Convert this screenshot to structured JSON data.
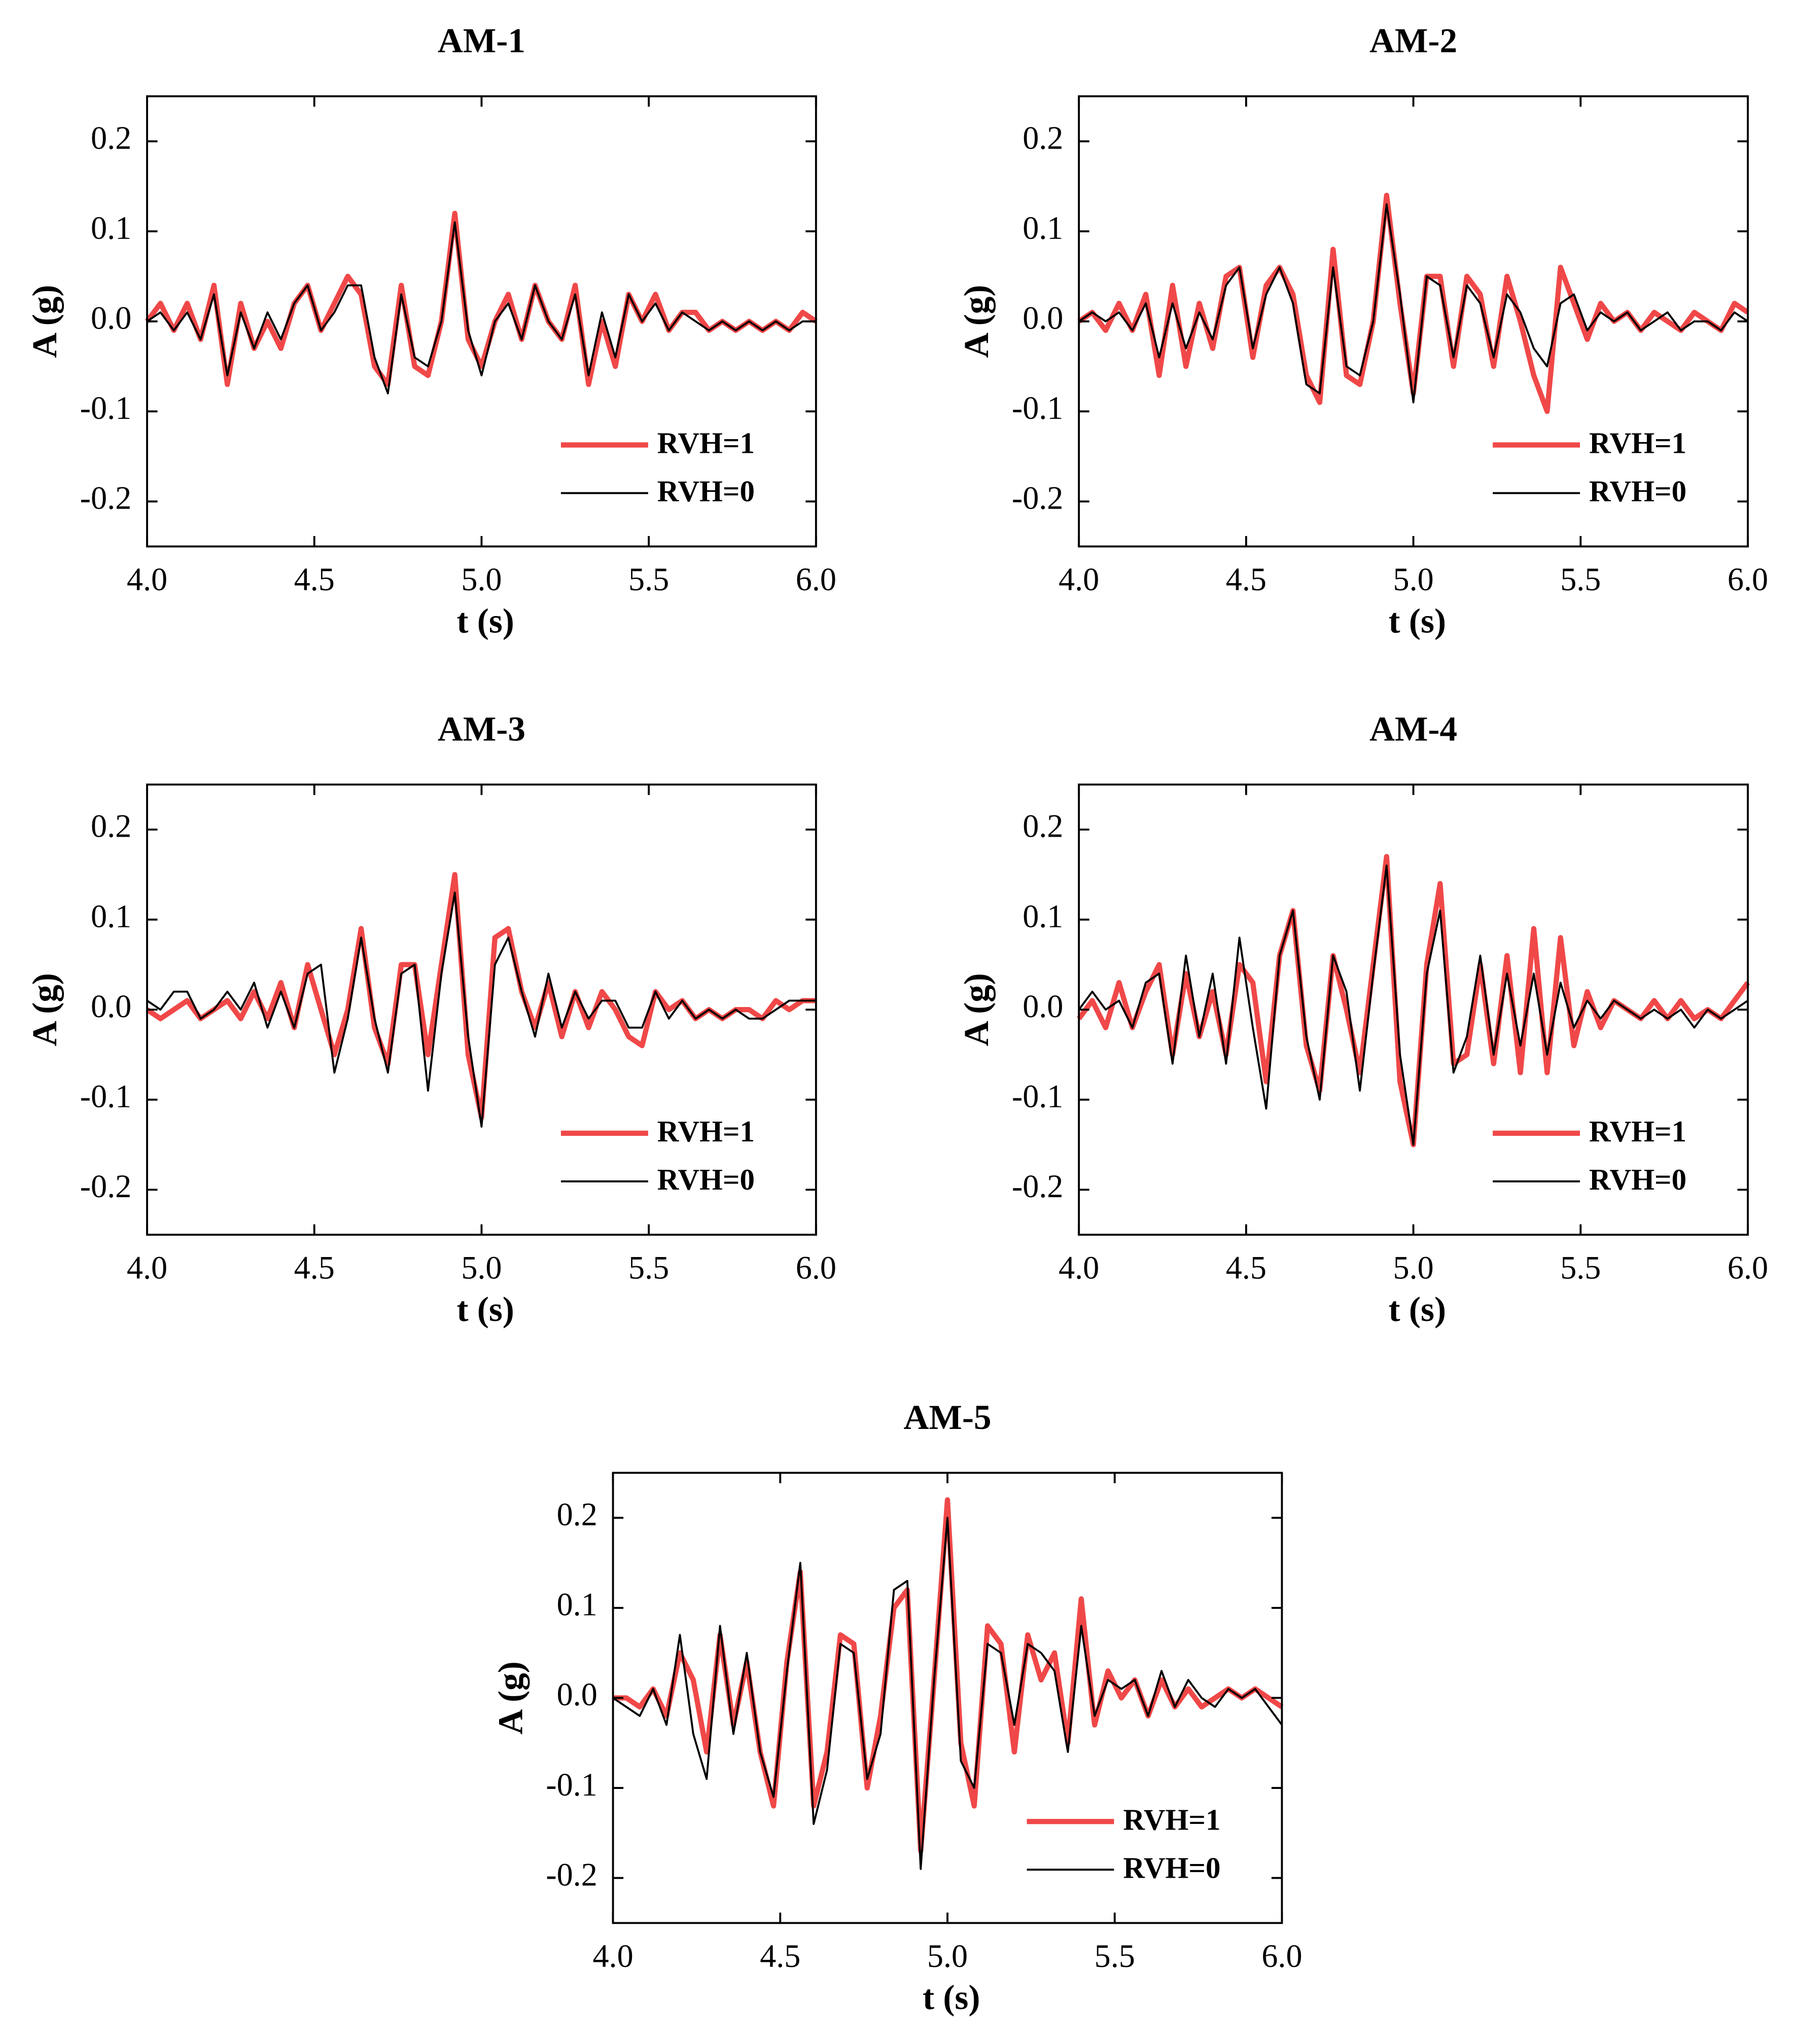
{
  "chart_data": [
    {
      "type": "line",
      "title": "AM-1",
      "xlabel": "t (s)",
      "ylabel": "A (g)",
      "legend": "lower right",
      "xlim": [
        4,
        6
      ],
      "ylim": [
        -0.25,
        0.25
      ],
      "xticks": [
        {
          "value": 4,
          "label": "4.0"
        },
        4.5,
        {
          "value": 5,
          "label": "5.0"
        },
        5.5,
        {
          "value": 6,
          "label": "6.0"
        }
      ],
      "yticks": [
        -0.2,
        -0.1,
        {
          "value": 0,
          "label": "0.0"
        },
        0.1,
        0.2
      ],
      "x": [
        4,
        4.04,
        4.08,
        4.12,
        4.16,
        4.2,
        4.24,
        4.28,
        4.32,
        4.36,
        4.4,
        4.44,
        4.48,
        4.52,
        4.56,
        4.6,
        4.64,
        4.68,
        4.72,
        4.76,
        4.8,
        4.84,
        4.88,
        4.92,
        4.96,
        5,
        5.04,
        5.08,
        5.12,
        5.16,
        5.2,
        5.24,
        5.28,
        5.32,
        5.36,
        5.4,
        5.44,
        5.48,
        5.52,
        5.56,
        5.6,
        5.64,
        5.68,
        5.72,
        5.76,
        5.8,
        5.84,
        5.88,
        5.92,
        5.96,
        6
      ],
      "series": [
        {
          "name": "RVH=1",
          "color": "#f04848",
          "values": [
            0.0,
            0.02,
            -0.01,
            0.02,
            -0.02,
            0.04,
            -0.07,
            0.02,
            -0.03,
            0.0,
            -0.03,
            0.02,
            0.04,
            -0.01,
            0.02,
            0.05,
            0.03,
            -0.05,
            -0.07,
            0.04,
            -0.05,
            -0.06,
            0.0,
            0.12,
            -0.02,
            -0.05,
            0.0,
            0.03,
            -0.02,
            0.04,
            0.0,
            -0.02,
            0.04,
            -0.07,
            0.0,
            -0.05,
            0.03,
            0.0,
            0.03,
            -0.01,
            0.01,
            0.01,
            -0.01,
            0.0,
            -0.01,
            0.0,
            -0.01,
            0.0,
            -0.01,
            0.01,
            0.0
          ]
        },
        {
          "name": "RVH=0",
          "color": "#000000",
          "values": [
            0.0,
            0.01,
            -0.01,
            0.01,
            -0.02,
            0.03,
            -0.06,
            0.01,
            -0.03,
            0.01,
            -0.02,
            0.02,
            0.04,
            -0.01,
            0.01,
            0.04,
            0.04,
            -0.04,
            -0.08,
            0.03,
            -0.04,
            -0.05,
            0.0,
            0.11,
            -0.01,
            -0.06,
            0.0,
            0.02,
            -0.02,
            0.04,
            0.0,
            -0.02,
            0.03,
            -0.06,
            0.01,
            -0.04,
            0.03,
            0.0,
            0.02,
            -0.01,
            0.01,
            0.0,
            -0.01,
            0.0,
            -0.01,
            0.0,
            -0.01,
            0.0,
            -0.01,
            0.0,
            0.0
          ]
        }
      ]
    },
    {
      "type": "line",
      "title": "AM-2",
      "xlabel": "t (s)",
      "ylabel": "A (g)",
      "legend": "lower right",
      "xlim": [
        4,
        6
      ],
      "ylim": [
        -0.25,
        0.25
      ],
      "xticks": [
        {
          "value": 4,
          "label": "4.0"
        },
        4.5,
        {
          "value": 5,
          "label": "5.0"
        },
        5.5,
        {
          "value": 6,
          "label": "6.0"
        }
      ],
      "yticks": [
        -0.2,
        -0.1,
        {
          "value": 0,
          "label": "0.0"
        },
        0.1,
        0.2
      ],
      "x": [
        4,
        4.04,
        4.08,
        4.12,
        4.16,
        4.2,
        4.24,
        4.28,
        4.32,
        4.36,
        4.4,
        4.44,
        4.48,
        4.52,
        4.56,
        4.6,
        4.64,
        4.68,
        4.72,
        4.76,
        4.8,
        4.84,
        4.88,
        4.92,
        4.96,
        5,
        5.04,
        5.08,
        5.12,
        5.16,
        5.2,
        5.24,
        5.28,
        5.32,
        5.36,
        5.4,
        5.44,
        5.48,
        5.52,
        5.56,
        5.6,
        5.64,
        5.68,
        5.72,
        5.76,
        5.8,
        5.84,
        5.88,
        5.92,
        5.96,
        6
      ],
      "series": [
        {
          "name": "RVH=1",
          "color": "#f04848",
          "values": [
            0.0,
            0.01,
            -0.01,
            0.02,
            -0.01,
            0.03,
            -0.06,
            0.04,
            -0.05,
            0.02,
            -0.03,
            0.05,
            0.06,
            -0.04,
            0.04,
            0.06,
            0.03,
            -0.06,
            -0.09,
            0.08,
            -0.06,
            -0.07,
            0.0,
            0.14,
            0.02,
            -0.08,
            0.05,
            0.05,
            -0.05,
            0.05,
            0.03,
            -0.05,
            0.05,
            0.0,
            -0.06,
            -0.1,
            0.06,
            0.02,
            -0.02,
            0.02,
            0.0,
            0.01,
            -0.01,
            0.01,
            0.0,
            -0.01,
            0.01,
            0.0,
            -0.01,
            0.02,
            0.01
          ]
        },
        {
          "name": "RVH=0",
          "color": "#000000",
          "values": [
            0.0,
            0.01,
            0.0,
            0.01,
            -0.01,
            0.02,
            -0.04,
            0.02,
            -0.03,
            0.01,
            -0.02,
            0.04,
            0.06,
            -0.03,
            0.03,
            0.06,
            0.02,
            -0.07,
            -0.08,
            0.06,
            -0.05,
            -0.06,
            0.0,
            0.13,
            0.03,
            -0.09,
            0.05,
            0.04,
            -0.04,
            0.04,
            0.02,
            -0.04,
            0.03,
            0.01,
            -0.03,
            -0.05,
            0.02,
            0.03,
            -0.01,
            0.01,
            0.0,
            0.01,
            -0.01,
            0.0,
            0.01,
            -0.01,
            0.0,
            0.0,
            -0.01,
            0.01,
            0.0
          ]
        }
      ]
    },
    {
      "type": "line",
      "title": "AM-3",
      "xlabel": "t (s)",
      "ylabel": "A (g)",
      "legend": "lower right",
      "xlim": [
        4,
        6
      ],
      "ylim": [
        -0.25,
        0.25
      ],
      "xticks": [
        {
          "value": 4,
          "label": "4.0"
        },
        4.5,
        {
          "value": 5,
          "label": "5.0"
        },
        5.5,
        {
          "value": 6,
          "label": "6.0"
        }
      ],
      "yticks": [
        -0.2,
        -0.1,
        {
          "value": 0,
          "label": "0.0"
        },
        0.1,
        0.2
      ],
      "x": [
        4,
        4.04,
        4.08,
        4.12,
        4.16,
        4.2,
        4.24,
        4.28,
        4.32,
        4.36,
        4.4,
        4.44,
        4.48,
        4.52,
        4.56,
        4.6,
        4.64,
        4.68,
        4.72,
        4.76,
        4.8,
        4.84,
        4.88,
        4.92,
        4.96,
        5,
        5.04,
        5.08,
        5.12,
        5.16,
        5.2,
        5.24,
        5.28,
        5.32,
        5.36,
        5.4,
        5.44,
        5.48,
        5.52,
        5.56,
        5.6,
        5.64,
        5.68,
        5.72,
        5.76,
        5.8,
        5.84,
        5.88,
        5.92,
        5.96,
        6
      ],
      "series": [
        {
          "name": "RVH=1",
          "color": "#f04848",
          "values": [
            0.0,
            -0.01,
            0.0,
            0.01,
            -0.01,
            0.0,
            0.01,
            -0.01,
            0.02,
            -0.01,
            0.03,
            -0.02,
            0.05,
            0.0,
            -0.05,
            0.0,
            0.09,
            -0.02,
            -0.06,
            0.05,
            0.05,
            -0.05,
            0.05,
            0.15,
            -0.05,
            -0.12,
            0.08,
            0.09,
            0.02,
            -0.02,
            0.03,
            -0.03,
            0.02,
            -0.02,
            0.02,
            0.0,
            -0.03,
            -0.04,
            0.02,
            0.0,
            0.01,
            -0.01,
            0.0,
            -0.01,
            0.0,
            0.0,
            -0.01,
            0.01,
            0.0,
            0.01,
            0.01
          ]
        },
        {
          "name": "RVH=0",
          "color": "#000000",
          "values": [
            0.01,
            0.0,
            0.02,
            0.02,
            -0.01,
            0.0,
            0.02,
            0.0,
            0.03,
            -0.02,
            0.02,
            -0.02,
            0.04,
            0.05,
            -0.07,
            -0.01,
            0.08,
            -0.01,
            -0.07,
            0.04,
            0.05,
            -0.09,
            0.04,
            0.13,
            -0.03,
            -0.13,
            0.05,
            0.08,
            0.02,
            -0.03,
            0.04,
            -0.02,
            0.02,
            -0.01,
            0.01,
            0.01,
            -0.02,
            -0.02,
            0.02,
            -0.01,
            0.01,
            -0.01,
            0.0,
            -0.01,
            0.0,
            -0.01,
            -0.01,
            0.0,
            0.01,
            0.01,
            0.01
          ]
        }
      ]
    },
    {
      "type": "line",
      "title": "AM-4",
      "xlabel": "t (s)",
      "ylabel": "A (g)",
      "legend": "lower right",
      "xlim": [
        4,
        6
      ],
      "ylim": [
        -0.25,
        0.25
      ],
      "xticks": [
        {
          "value": 4,
          "label": "4.0"
        },
        4.5,
        {
          "value": 5,
          "label": "5.0"
        },
        5.5,
        {
          "value": 6,
          "label": "6.0"
        }
      ],
      "yticks": [
        -0.2,
        -0.1,
        {
          "value": 0,
          "label": "0.0"
        },
        0.1,
        0.2
      ],
      "x": [
        4,
        4.04,
        4.08,
        4.12,
        4.16,
        4.2,
        4.24,
        4.28,
        4.32,
        4.36,
        4.4,
        4.44,
        4.48,
        4.52,
        4.56,
        4.6,
        4.64,
        4.68,
        4.72,
        4.76,
        4.8,
        4.84,
        4.88,
        4.92,
        4.96,
        5,
        5.04,
        5.08,
        5.12,
        5.16,
        5.2,
        5.24,
        5.28,
        5.32,
        5.36,
        5.4,
        5.44,
        5.48,
        5.52,
        5.56,
        5.6,
        5.64,
        5.68,
        5.72,
        5.76,
        5.8,
        5.84,
        5.88,
        5.92,
        5.96,
        6
      ],
      "series": [
        {
          "name": "RVH=1",
          "color": "#f04848",
          "values": [
            -0.01,
            0.01,
            -0.02,
            0.03,
            -0.02,
            0.02,
            0.05,
            -0.05,
            0.04,
            -0.03,
            0.02,
            -0.05,
            0.05,
            0.03,
            -0.08,
            0.06,
            0.11,
            -0.04,
            -0.09,
            0.06,
            0.0,
            -0.07,
            0.05,
            0.17,
            -0.08,
            -0.15,
            0.05,
            0.14,
            -0.06,
            -0.05,
            0.05,
            -0.06,
            0.06,
            -0.07,
            0.09,
            -0.07,
            0.08,
            -0.04,
            0.02,
            -0.02,
            0.01,
            0.0,
            -0.01,
            0.01,
            -0.01,
            0.01,
            -0.01,
            0.0,
            -0.01,
            0.01,
            0.03
          ]
        },
        {
          "name": "RVH=0",
          "color": "#000000",
          "values": [
            0.0,
            0.02,
            0.0,
            0.01,
            -0.02,
            0.03,
            0.04,
            -0.06,
            0.06,
            -0.03,
            0.04,
            -0.06,
            0.08,
            -0.02,
            -0.11,
            0.06,
            0.11,
            -0.03,
            -0.1,
            0.06,
            0.02,
            -0.09,
            0.04,
            0.16,
            -0.05,
            -0.15,
            0.04,
            0.11,
            -0.07,
            -0.03,
            0.06,
            -0.05,
            0.04,
            -0.04,
            0.04,
            -0.05,
            0.03,
            -0.02,
            0.01,
            -0.01,
            0.01,
            0.0,
            -0.01,
            0.0,
            -0.01,
            0.0,
            -0.02,
            0.0,
            -0.01,
            0.0,
            0.01
          ]
        }
      ]
    },
    {
      "type": "line",
      "title": "AM-5",
      "xlabel": "t (s)",
      "ylabel": "A (g)",
      "legend": "lower right",
      "xlim": [
        4,
        6
      ],
      "ylim": [
        -0.25,
        0.25
      ],
      "xticks": [
        {
          "value": 4,
          "label": "4.0"
        },
        4.5,
        {
          "value": 5,
          "label": "5.0"
        },
        5.5,
        {
          "value": 6,
          "label": "6.0"
        }
      ],
      "yticks": [
        -0.2,
        -0.1,
        {
          "value": 0,
          "label": "0.0"
        },
        0.1,
        0.2
      ],
      "x": [
        4,
        4.04,
        4.08,
        4.12,
        4.16,
        4.2,
        4.24,
        4.28,
        4.32,
        4.36,
        4.4,
        4.44,
        4.48,
        4.52,
        4.56,
        4.6,
        4.64,
        4.68,
        4.72,
        4.76,
        4.8,
        4.84,
        4.88,
        4.92,
        4.96,
        5,
        5.04,
        5.08,
        5.12,
        5.16,
        5.2,
        5.24,
        5.28,
        5.32,
        5.36,
        5.4,
        5.44,
        5.48,
        5.52,
        5.56,
        5.6,
        5.64,
        5.68,
        5.72,
        5.76,
        5.8,
        5.84,
        5.88,
        5.92,
        5.96,
        6
      ],
      "series": [
        {
          "name": "RVH=1",
          "color": "#f04848",
          "values": [
            0.0,
            0.0,
            -0.01,
            0.01,
            -0.02,
            0.05,
            0.02,
            -0.06,
            0.07,
            -0.03,
            0.04,
            -0.06,
            -0.12,
            0.04,
            0.14,
            -0.12,
            -0.06,
            0.07,
            0.06,
            -0.1,
            -0.02,
            0.1,
            0.12,
            -0.17,
            0.02,
            0.22,
            -0.05,
            -0.12,
            0.08,
            0.06,
            -0.06,
            0.07,
            0.02,
            0.05,
            -0.05,
            0.11,
            -0.03,
            0.03,
            0.0,
            0.02,
            -0.02,
            0.02,
            -0.01,
            0.01,
            -0.01,
            0.0,
            0.01,
            0.0,
            0.01,
            0.0,
            -0.01
          ]
        },
        {
          "name": "RVH=0",
          "color": "#000000",
          "values": [
            0.0,
            -0.01,
            -0.02,
            0.01,
            -0.03,
            0.07,
            -0.04,
            -0.09,
            0.08,
            -0.04,
            0.05,
            -0.06,
            -0.11,
            0.03,
            0.15,
            -0.14,
            -0.08,
            0.06,
            0.05,
            -0.09,
            -0.04,
            0.12,
            0.13,
            -0.19,
            0.02,
            0.2,
            -0.07,
            -0.1,
            0.06,
            0.05,
            -0.03,
            0.06,
            0.05,
            0.03,
            -0.06,
            0.08,
            -0.02,
            0.02,
            0.01,
            0.02,
            -0.02,
            0.03,
            -0.01,
            0.02,
            0.0,
            -0.01,
            0.01,
            0.0,
            0.01,
            -0.01,
            -0.03
          ]
        }
      ]
    }
  ]
}
